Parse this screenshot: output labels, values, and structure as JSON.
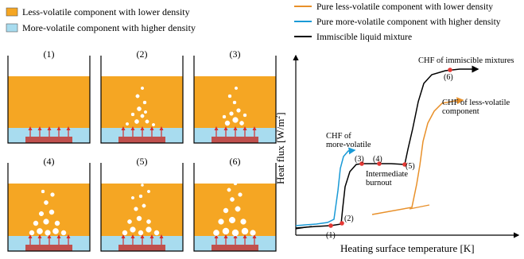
{
  "legend_left": {
    "items": [
      {
        "label": "Less-volatile component with lower density",
        "color": "#f5a623"
      },
      {
        "label": "More-volatile component with higher density",
        "color": "#a8dcef"
      }
    ]
  },
  "panels": {
    "labels": [
      "(1)",
      "(2)",
      "(3)",
      "(4)",
      "(5)",
      "(6)"
    ]
  },
  "legend_right": {
    "items": [
      {
        "label": "Pure less-volatile component with lower density",
        "color": "#e8902a"
      },
      {
        "label": "Pure more-volatile component with higher density",
        "color": "#1a9ad6"
      },
      {
        "label": "Immiscible liquid mixture",
        "color": "#000000"
      }
    ]
  },
  "plot": {
    "ylabel": "Heat flux [W/m",
    "ylabel_sup": "2",
    "ylabel_end": "]",
    "xlabel": "Heating surface temperature   [K]",
    "annotations": {
      "chf_immiscible": "CHF of immiscible mixtures",
      "chf_less_1": "CHF of less-volatile",
      "chf_less_2": "component",
      "chf_more_1": "CHF of",
      "chf_more_2": "more-volatile",
      "intermediate_1": "Intermediate",
      "intermediate_2": "burnout"
    },
    "point_labels": [
      "(1)",
      "(2)",
      "(3)",
      "(4)",
      "(5)",
      "(6)"
    ]
  },
  "colors": {
    "orange": "#f5a623",
    "blue": "#a8dcef",
    "heater": "#c0504d",
    "arrow": "#d32f2f",
    "point": "#e53935"
  }
}
